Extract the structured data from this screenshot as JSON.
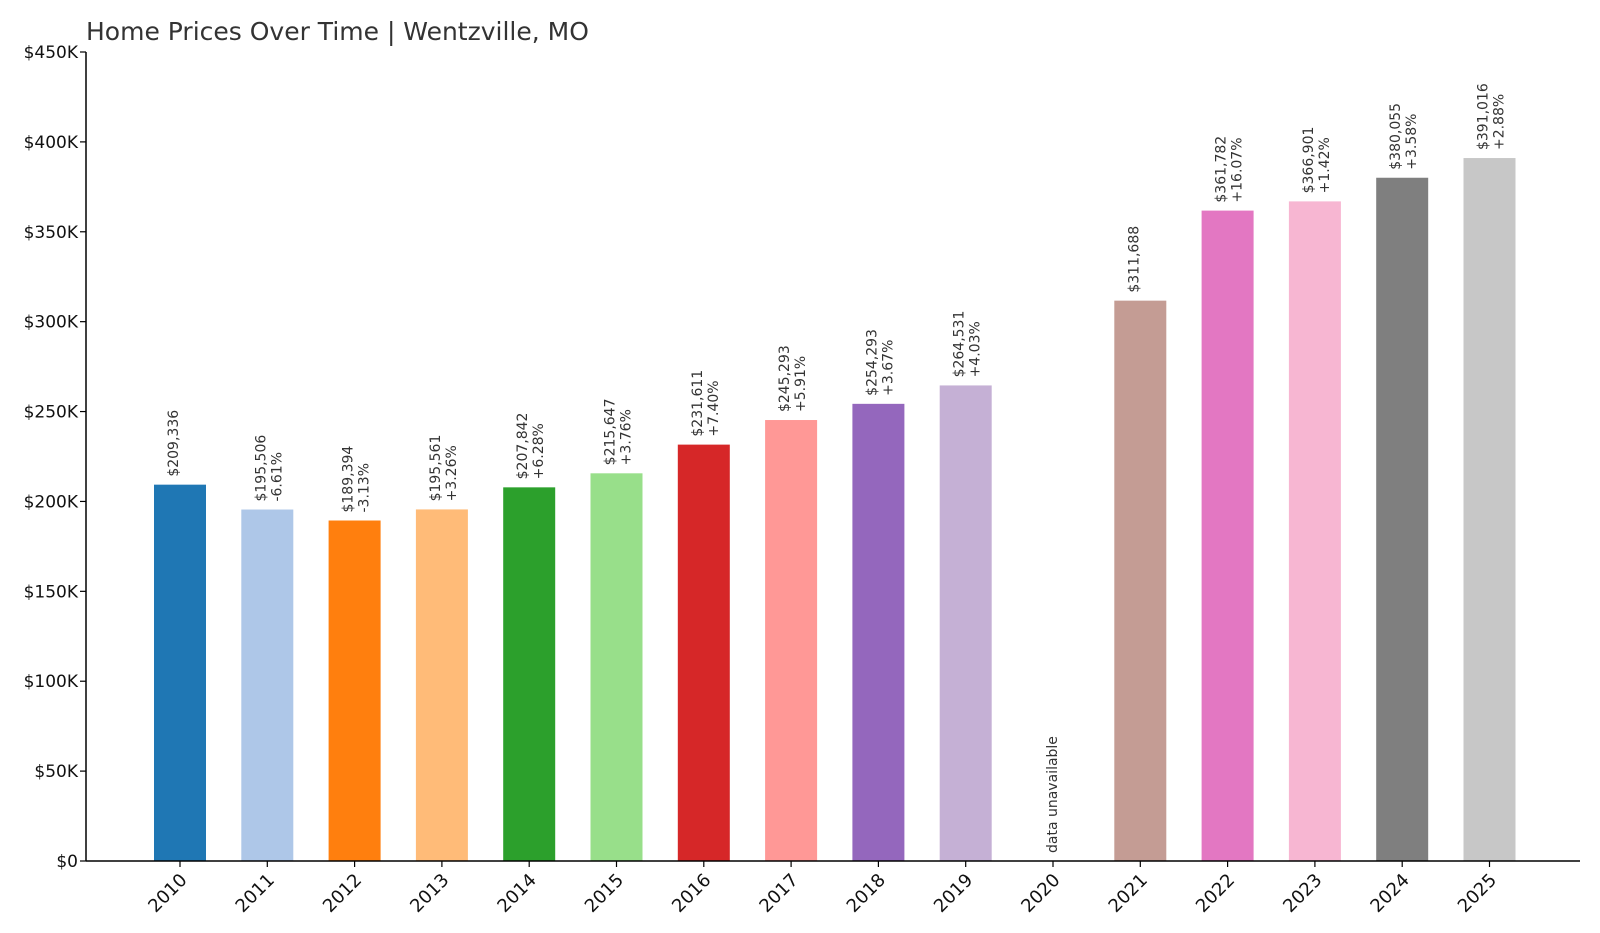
{
  "chart_data": {
    "type": "bar",
    "title": "Home Prices Over Time | Wentzville, MO",
    "xlabel": "",
    "ylabel": "",
    "ylim": [
      0,
      450000
    ],
    "yticks": [
      0,
      50000,
      100000,
      150000,
      200000,
      250000,
      300000,
      350000,
      400000,
      450000
    ],
    "ytick_labels": [
      "$0",
      "$50K",
      "$100K",
      "$150K",
      "$200K",
      "$250K",
      "$300K",
      "$350K",
      "$400K",
      "$450K"
    ],
    "grid": false,
    "legend": "none",
    "categories": [
      "2010",
      "2011",
      "2012",
      "2013",
      "2014",
      "2015",
      "2016",
      "2017",
      "2018",
      "2019",
      "2020",
      "2021",
      "2022",
      "2023",
      "2024",
      "2025"
    ],
    "values": [
      209336,
      195506,
      189394,
      195561,
      207842,
      215647,
      231611,
      245293,
      254293,
      264531,
      null,
      311688,
      361782,
      366901,
      380055,
      391016
    ],
    "value_labels": [
      "$209,336",
      "$195,506",
      "$189,394",
      "$195,561",
      "$207,842",
      "$215,647",
      "$231,611",
      "$245,293",
      "$254,293",
      "$264,531",
      "data unavailable",
      "$311,688",
      "$361,782",
      "$366,901",
      "$380,055",
      "$391,016"
    ],
    "change_labels": [
      "",
      "-6.61%",
      "-3.13%",
      "+3.26%",
      "+6.28%",
      "+3.76%",
      "+7.40%",
      "+5.91%",
      "+3.67%",
      "+4.03%",
      "",
      "",
      "+16.07%",
      "+1.42%",
      "+3.58%",
      "+2.88%"
    ],
    "colors": [
      "#1f77b4",
      "#aec7e8",
      "#ff7f0e",
      "#ffbb78",
      "#2ca02c",
      "#98df8a",
      "#d62728",
      "#ff9896",
      "#9467bd",
      "#c5b0d5",
      "#8c564b",
      "#c49c94",
      "#e377c2",
      "#f7b6d2",
      "#7f7f7f",
      "#c7c7c7"
    ]
  }
}
